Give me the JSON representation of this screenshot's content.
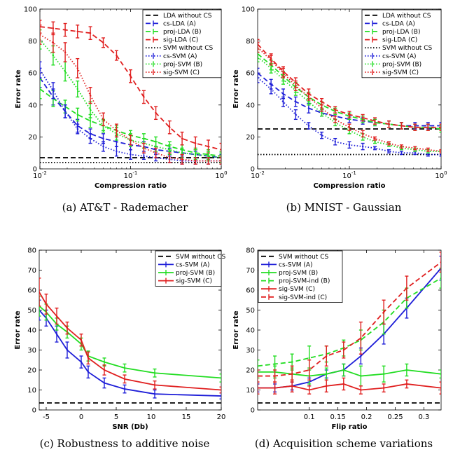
{
  "colors": {
    "blue": "#1f1fd8",
    "green": "#22dd22",
    "red": "#e01f1f",
    "black": "#000000"
  },
  "chart_data": [
    {
      "type": "line",
      "caption": "(a) AT&T - Rademacher",
      "xlabel": "Compression ratio",
      "ylabel": "Error rate",
      "xscale": "log",
      "xlim": [
        0.01,
        1
      ],
      "ylim": [
        0,
        100
      ],
      "yticks": [
        0,
        20,
        40,
        60,
        80,
        100
      ],
      "xticks": [
        {
          "v": 0.01,
          "b": "10",
          "e": "-2"
        },
        {
          "v": 0.1,
          "b": "10",
          "e": "-1"
        },
        {
          "v": 1,
          "b": "10",
          "e": "0"
        }
      ],
      "legend_position": "top-right",
      "x": [
        0.01,
        0.014,
        0.019,
        0.026,
        0.036,
        0.05,
        0.07,
        0.1,
        0.14,
        0.19,
        0.27,
        0.37,
        0.52,
        0.72,
        1.0
      ],
      "series": [
        {
          "name": "LDA without CS",
          "color": "black",
          "dash": "dash",
          "hline": 7
        },
        {
          "name": "cs-LDA (A)",
          "color": "blue",
          "dash": "dash",
          "values": [
            57,
            45,
            36,
            27,
            22,
            19,
            17,
            15,
            14,
            12,
            11,
            10,
            9,
            8,
            7
          ],
          "err": [
            6,
            5,
            4,
            4,
            3,
            3,
            3,
            3,
            3,
            2,
            2,
            2,
            2,
            2,
            2
          ]
        },
        {
          "name": "proj-LDA (B)",
          "color": "green",
          "dash": "dash",
          "values": [
            50,
            44,
            39,
            34,
            30,
            27,
            24,
            21,
            19,
            17,
            14,
            12,
            10,
            9,
            8
          ],
          "err": [
            6,
            5,
            4,
            4,
            4,
            3,
            3,
            3,
            3,
            3,
            3,
            3,
            3,
            3,
            3
          ]
        },
        {
          "name": "sig-LDA (C)",
          "color": "red",
          "dash": "dash",
          "values": [
            89,
            88,
            87,
            86,
            85,
            79,
            71,
            58,
            45,
            35,
            26,
            19,
            16,
            14,
            12
          ],
          "err": [
            4,
            4,
            4,
            4,
            4,
            3,
            3,
            4,
            4,
            4,
            4,
            4,
            4,
            4,
            4
          ]
        },
        {
          "name": "SVM without CS",
          "color": "black",
          "dash": "dot",
          "hline": 4
        },
        {
          "name": "cs-SVM (A)",
          "color": "blue",
          "dash": "dot",
          "values": [
            62,
            49,
            36,
            25,
            19,
            14,
            11,
            9,
            8,
            7,
            6,
            5,
            5,
            5,
            5
          ],
          "err": [
            5,
            5,
            4,
            3,
            3,
            3,
            3,
            3,
            2,
            2,
            2,
            2,
            2,
            2,
            2
          ]
        },
        {
          "name": "proj-SVM (B)",
          "color": "green",
          "dash": "dot",
          "values": [
            81,
            71,
            61,
            50,
            37,
            27,
            22,
            18,
            16,
            14,
            12,
            10,
            9,
            8,
            7
          ],
          "err": [
            6,
            6,
            6,
            5,
            5,
            4,
            4,
            4,
            3,
            3,
            3,
            3,
            3,
            3,
            3
          ]
        },
        {
          "name": "sig-SVM (C)",
          "color": "red",
          "dash": "dot",
          "values": [
            84,
            79,
            73,
            63,
            46,
            31,
            24,
            18,
            13,
            10,
            7,
            6,
            5,
            5,
            5
          ],
          "err": [
            6,
            6,
            6,
            6,
            5,
            4,
            4,
            3,
            3,
            3,
            3,
            3,
            2,
            2,
            2
          ]
        }
      ]
    },
    {
      "type": "line",
      "caption": "(b) MNIST - Gaussian",
      "xlabel": "Compression ratio",
      "ylabel": "Error rate",
      "xscale": "log",
      "xlim": [
        0.01,
        1
      ],
      "ylim": [
        0,
        100
      ],
      "yticks": [
        0,
        20,
        40,
        60,
        80,
        100
      ],
      "xticks": [
        {
          "v": 0.01,
          "b": "10",
          "e": "-2"
        },
        {
          "v": 0.1,
          "b": "10",
          "e": "-1"
        },
        {
          "v": 1,
          "b": "10",
          "e": "0"
        }
      ],
      "legend_position": "top-right",
      "x": [
        0.01,
        0.014,
        0.019,
        0.026,
        0.036,
        0.05,
        0.07,
        0.1,
        0.14,
        0.19,
        0.27,
        0.37,
        0.52,
        0.72,
        1.0
      ],
      "series": [
        {
          "name": "LDA without CS",
          "color": "black",
          "dash": "dash",
          "hline": 25
        },
        {
          "name": "cs-LDA (A)",
          "color": "blue",
          "dash": "dash",
          "values": [
            60,
            53,
            47,
            42,
            38,
            35,
            33,
            31,
            30,
            29,
            28,
            27,
            27,
            27,
            27
          ],
          "err": [
            3,
            3,
            3,
            3,
            3,
            2,
            2,
            2,
            2,
            2,
            2,
            2,
            2,
            2,
            2
          ]
        },
        {
          "name": "proj-LDA (B)",
          "color": "green",
          "dash": "dash",
          "values": [
            72,
            65,
            58,
            51,
            45,
            40,
            36,
            33,
            31,
            29,
            28,
            27,
            26,
            26,
            25
          ],
          "err": [
            3,
            3,
            3,
            3,
            3,
            2,
            2,
            2,
            2,
            2,
            2,
            2,
            2,
            2,
            2
          ]
        },
        {
          "name": "sig-LDA (C)",
          "color": "red",
          "dash": "dash",
          "values": [
            78,
            69,
            61,
            54,
            47,
            42,
            37,
            34,
            32,
            30,
            28,
            27,
            26,
            26,
            26
          ],
          "err": [
            3,
            3,
            3,
            3,
            3,
            2,
            2,
            2,
            2,
            2,
            2,
            2,
            2,
            2,
            2
          ]
        },
        {
          "name": "SVM without CS",
          "color": "black",
          "dash": "dot",
          "hline": 9
        },
        {
          "name": "cs-SVM (A)",
          "color": "blue",
          "dash": "dot",
          "values": [
            57,
            50,
            42,
            34,
            27,
            21,
            17,
            15,
            14,
            13,
            11,
            10,
            10,
            9,
            9
          ],
          "err": [
            3,
            3,
            3,
            3,
            2,
            2,
            2,
            2,
            2,
            1,
            1,
            1,
            1,
            1,
            1
          ]
        },
        {
          "name": "proj-SVM (B)",
          "color": "green",
          "dash": "dot",
          "values": [
            70,
            63,
            56,
            49,
            42,
            35,
            29,
            24,
            20,
            17,
            15,
            13,
            12,
            11,
            11
          ],
          "err": [
            3,
            3,
            3,
            3,
            2,
            2,
            2,
            2,
            2,
            1,
            1,
            1,
            1,
            1,
            1
          ]
        },
        {
          "name": "sig-SVM (C)",
          "color": "red",
          "dash": "dot",
          "values": [
            76,
            68,
            60,
            52,
            45,
            38,
            31,
            26,
            22,
            19,
            16,
            14,
            13,
            12,
            11
          ],
          "err": [
            3,
            3,
            3,
            3,
            2,
            2,
            2,
            2,
            2,
            1,
            1,
            1,
            1,
            1,
            1
          ]
        }
      ]
    },
    {
      "type": "line",
      "caption": "(c) Robustness to additive noise",
      "xlabel": "SNR (Db)",
      "ylabel": "Error rate",
      "xscale": "linear",
      "xlim": [
        -6,
        20
      ],
      "ylim": [
        0,
        80
      ],
      "yticks": [
        0,
        10,
        20,
        30,
        40,
        50,
        60,
        70,
        80
      ],
      "xticks": [
        {
          "v": -5,
          "t": "-5"
        },
        {
          "v": 0,
          "t": "0"
        },
        {
          "v": 5,
          "t": "5"
        },
        {
          "v": 10,
          "t": "10"
        },
        {
          "v": 15,
          "t": "15"
        },
        {
          "v": 20,
          "t": "20"
        }
      ],
      "legend_position": "top-right",
      "x": [
        -6,
        -5,
        -3.5,
        -2,
        0,
        1,
        3.3,
        6.2,
        10.5,
        20
      ],
      "series": [
        {
          "name": "SVM without CS",
          "color": "black",
          "dash": "dash",
          "hline": 3.5
        },
        {
          "name": "cs-SVM (A)",
          "color": "blue",
          "dash": "solid",
          "values": [
            50,
            46,
            38,
            30,
            24,
            19,
            13.5,
            10.5,
            8,
            7
          ],
          "err": [
            5,
            4,
            4,
            4,
            3,
            3,
            2.5,
            2,
            2,
            1.5
          ]
        },
        {
          "name": "proj-SVM (B)",
          "color": "green",
          "dash": "solid",
          "values": [
            52,
            49,
            43,
            39,
            33,
            27,
            24,
            21,
            18.5,
            16
          ],
          "err": [
            5,
            4,
            3,
            3,
            3,
            2.5,
            2,
            2,
            2,
            2
          ]
        },
        {
          "name": "sig-SVM (C)",
          "color": "red",
          "dash": "solid",
          "values": [
            59,
            53,
            47,
            41,
            35,
            26,
            20,
            15.5,
            12.5,
            10
          ],
          "err": [
            7,
            5,
            4,
            3,
            3,
            3,
            2.5,
            2,
            2,
            1.5
          ]
        }
      ]
    },
    {
      "type": "line",
      "caption": "(d) Acquisition scheme variations",
      "xlabel": "Flip ratio",
      "ylabel": "Error rate",
      "xscale": "linear",
      "xlim": [
        0.01,
        0.33
      ],
      "ylim": [
        0,
        80
      ],
      "yticks": [
        0,
        10,
        20,
        30,
        40,
        50,
        60,
        70,
        80
      ],
      "xticks": [
        {
          "v": 0.1,
          "t": "0.1"
        },
        {
          "v": 0.15,
          "t": "0.15"
        },
        {
          "v": 0.2,
          "t": "0.2"
        },
        {
          "v": 0.25,
          "t": "0.25"
        },
        {
          "v": 0.3,
          "t": "0.3"
        }
      ],
      "legend_position": "top-left",
      "x": [
        0.01,
        0.04,
        0.07,
        0.1,
        0.13,
        0.16,
        0.19,
        0.23,
        0.27,
        0.33
      ],
      "series": [
        {
          "name": "SVM without CS",
          "color": "black",
          "dash": "dash",
          "hline": 3.5
        },
        {
          "name": "cs-SVM (A)",
          "color": "blue",
          "dash": "solid",
          "values": [
            11,
            11,
            12,
            14,
            18,
            20,
            27,
            38,
            51,
            71
          ],
          "err": [
            2,
            2,
            2,
            2,
            2,
            3,
            4,
            5,
            5,
            6
          ]
        },
        {
          "name": "proj-SVM (B)",
          "color": "green",
          "dash": "solid",
          "values": [
            19,
            19,
            18,
            17,
            18,
            20,
            17,
            18,
            20,
            18
          ],
          "err": [
            3,
            3,
            3,
            4,
            3,
            3,
            5,
            4,
            3,
            2
          ]
        },
        {
          "name": "proj-SVM-ind (B)",
          "color": "green",
          "dash": "dash",
          "values": [
            22,
            23,
            24,
            26,
            28,
            31,
            35,
            44,
            56,
            66
          ],
          "err": [
            3,
            4,
            4,
            6,
            4,
            4,
            5,
            6,
            5,
            5
          ]
        },
        {
          "name": "sig-SVM (C)",
          "color": "red",
          "dash": "solid",
          "values": [
            11,
            11,
            12,
            10,
            12,
            13,
            10,
            11,
            13,
            11
          ],
          "err": [
            3,
            3,
            3,
            2,
            3,
            3,
            2,
            2,
            2,
            3
          ]
        },
        {
          "name": "sig-SVM-ind (C)",
          "color": "red",
          "dash": "dash",
          "values": [
            17,
            17,
            18,
            20,
            27,
            30,
            36,
            49,
            61,
            74
          ],
          "err": [
            3,
            3,
            4,
            5,
            5,
            4,
            8,
            6,
            6,
            5
          ]
        }
      ]
    }
  ]
}
